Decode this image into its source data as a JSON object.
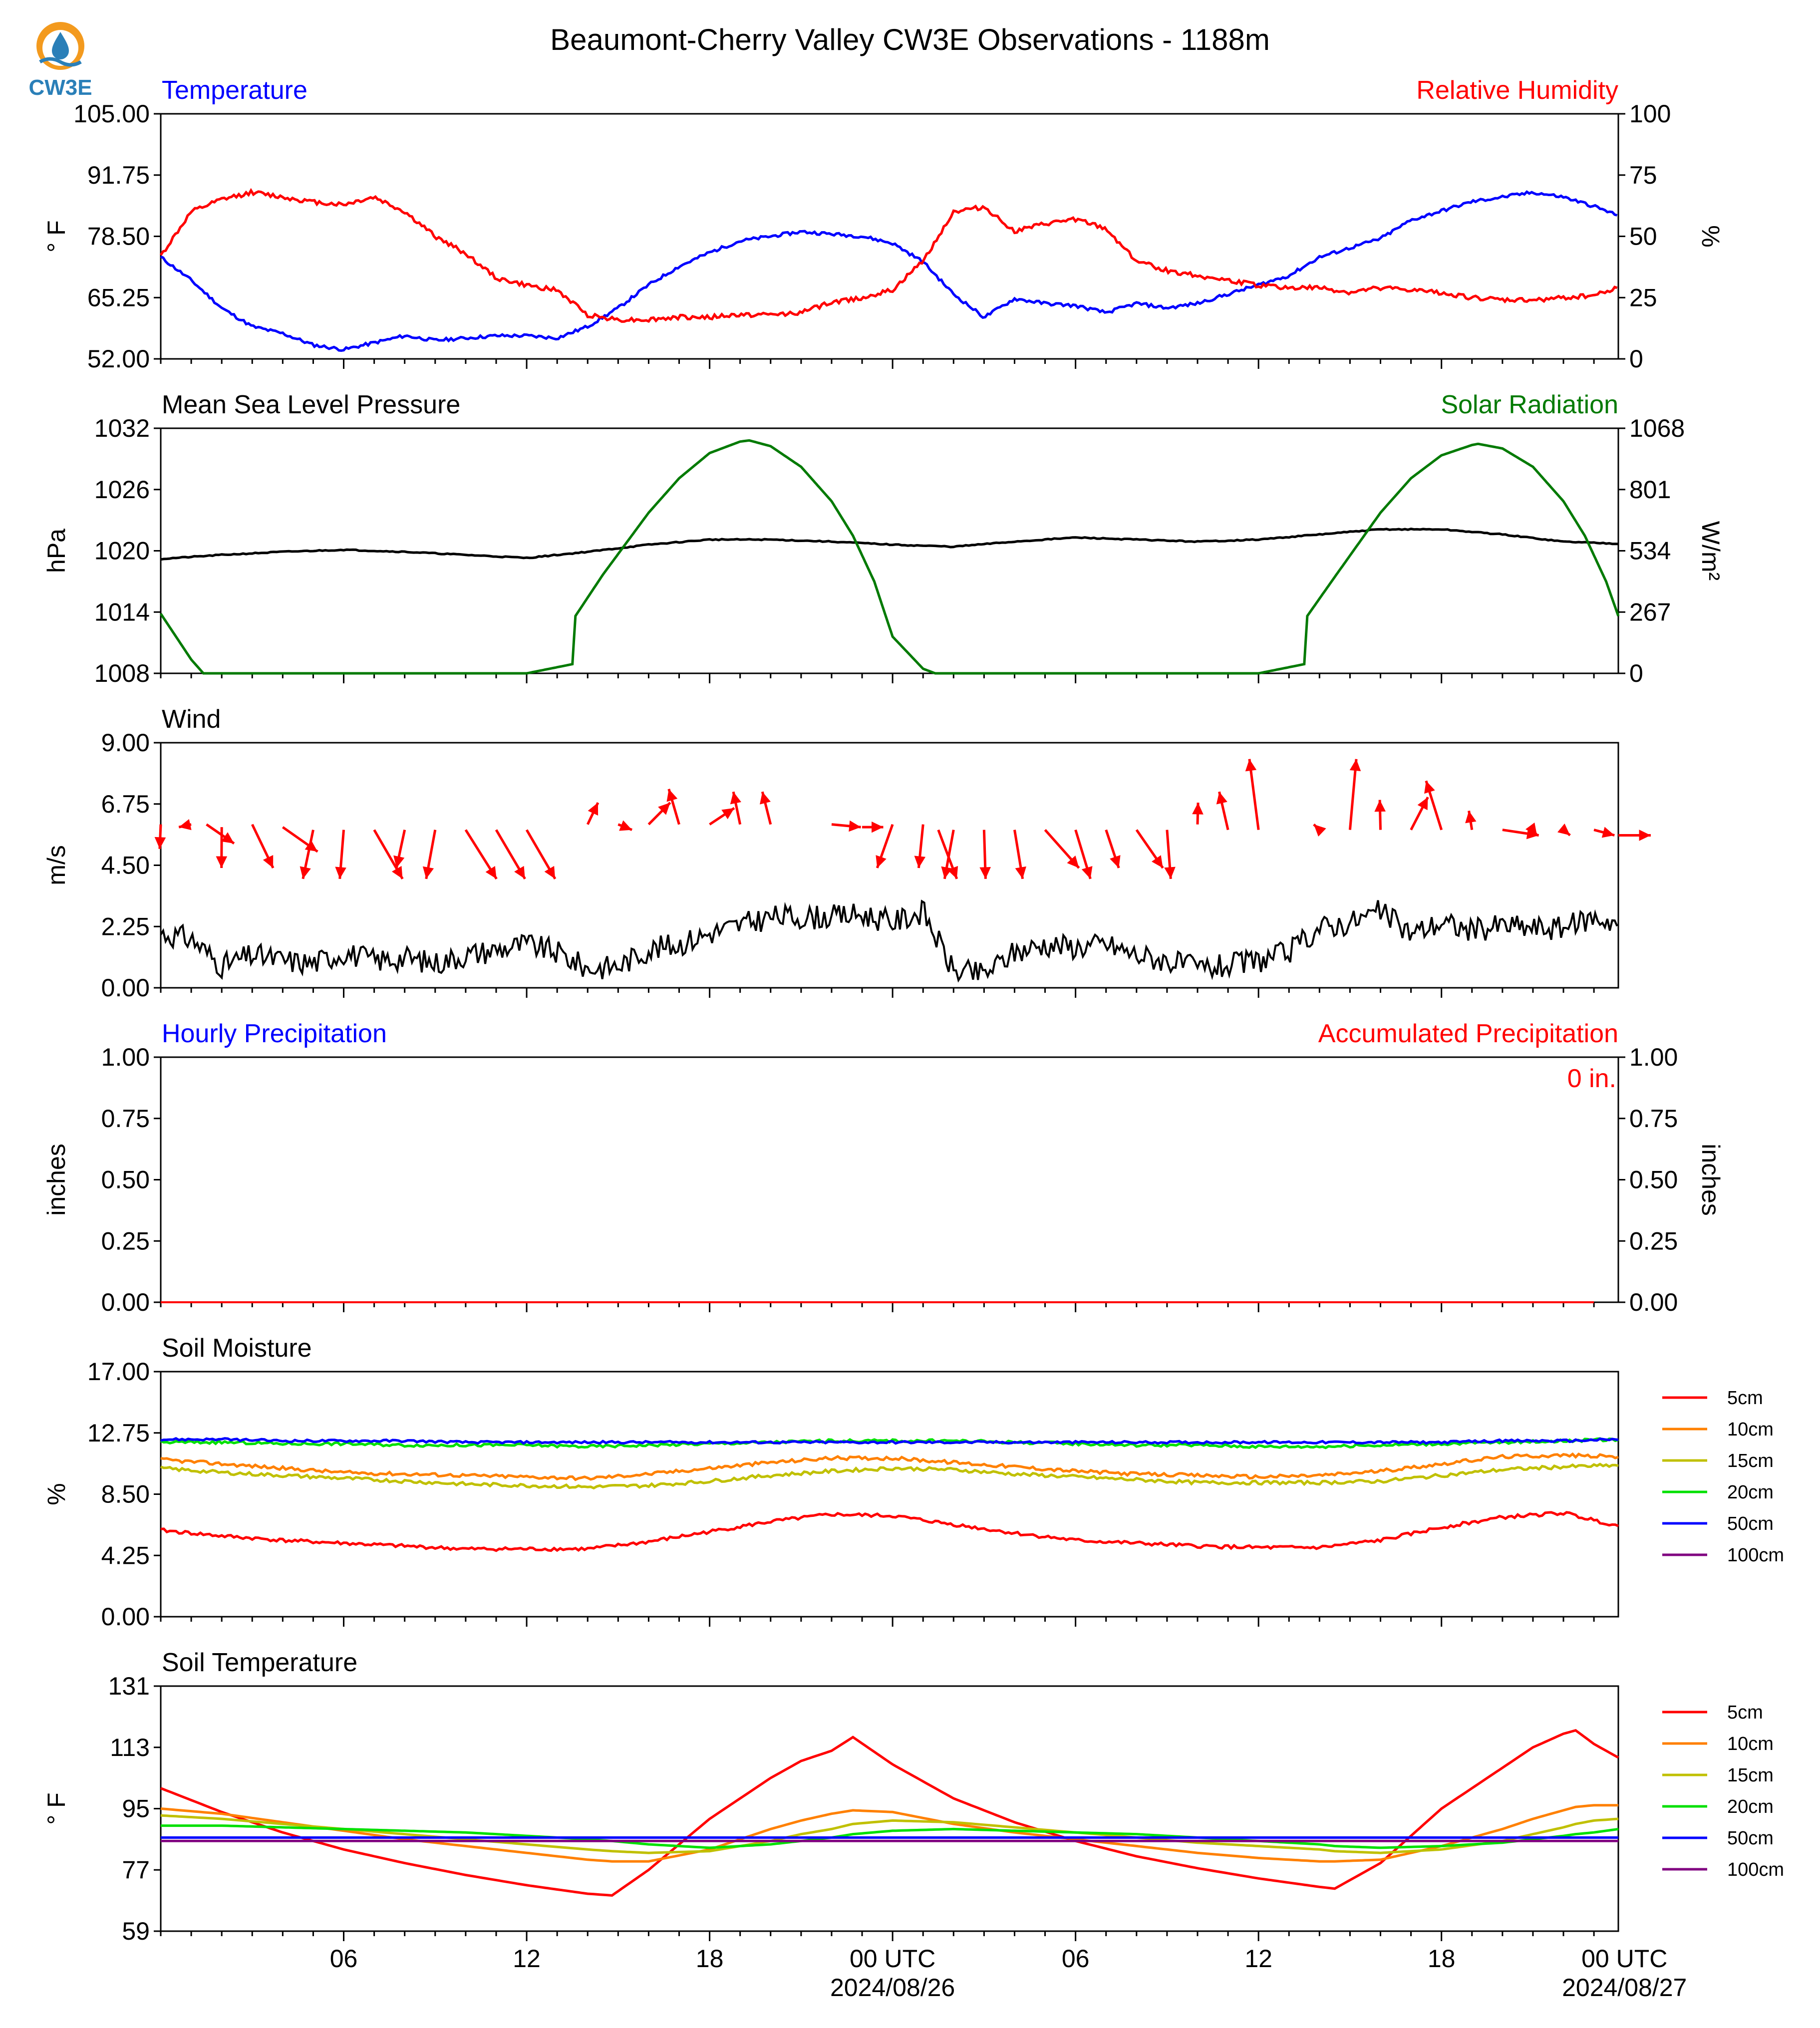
{
  "main_title": "Beaumont-Cherry Valley CW3E Observations - 1188m",
  "logo": {
    "label": "CW3E"
  },
  "x_axis": {
    "ticks": [
      "06",
      "12",
      "18",
      "00 UTC",
      "06",
      "12",
      "18",
      "00 UTC"
    ],
    "dates": [
      "2024/08/26",
      "2024/08/27"
    ]
  },
  "chart_data": [
    {
      "type": "line",
      "title_left": "Temperature",
      "title_right": "Relative Humidity",
      "ylabel_left": "° F",
      "ylabel_right": "%",
      "ylim_left": [
        52,
        105
      ],
      "ylim_right": [
        0,
        100
      ],
      "yticks_left": [
        "52.00",
        "65.25",
        "78.50",
        "91.75",
        "105.00"
      ],
      "yticks_right": [
        "0",
        "25",
        "50",
        "75",
        "100"
      ],
      "x_hours": [
        0,
        1,
        2,
        3,
        4,
        5,
        6,
        7,
        8,
        9,
        10,
        11,
        12,
        13,
        14,
        15,
        16,
        17,
        18,
        19,
        20,
        21,
        22,
        23,
        24,
        25,
        26,
        27,
        28,
        29,
        30,
        31,
        32,
        33,
        34,
        35,
        36,
        37,
        38,
        39,
        40,
        41,
        42,
        43,
        44,
        45,
        46,
        47,
        47.8
      ],
      "series": [
        {
          "name": "Temperature",
          "axis": "left",
          "color": "#0000ff",
          "values": [
            74,
            69,
            63,
            59,
            57.5,
            55,
            54,
            55.5,
            57,
            56,
            56.5,
            57,
            57,
            56.5,
            59,
            63,
            68,
            72,
            75,
            77.5,
            78.5,
            79.5,
            79,
            78.5,
            77,
            73,
            66,
            61,
            65,
            64,
            63.5,
            62,
            64,
            63,
            64,
            66,
            68,
            70,
            74,
            76,
            78,
            82,
            84,
            86,
            87,
            88,
            87,
            85,
            83
          ]
        },
        {
          "name": "Relative Humidity",
          "axis": "right",
          "color": "#ff0000",
          "values": [
            42,
            60,
            65,
            68,
            66,
            64,
            63,
            66,
            60,
            50,
            43,
            33,
            30,
            28,
            18,
            16,
            16,
            17,
            17,
            18,
            18,
            19,
            23,
            25,
            28,
            40,
            60,
            62,
            52,
            55,
            57,
            53,
            40,
            36,
            34,
            32,
            30,
            29,
            29,
            27,
            29,
            28,
            27,
            25,
            24,
            24,
            25,
            26,
            29
          ]
        }
      ]
    },
    {
      "type": "line",
      "title_left": "Mean Sea Level Pressure",
      "title_right": "Solar Radiation",
      "ylabel_left": "hPa",
      "ylabel_right": "W/m²",
      "ylim_left": [
        1008,
        1032
      ],
      "ylim_right": [
        0,
        1068
      ],
      "yticks_left": [
        "1008",
        "1014",
        "1020",
        "1026",
        "1032"
      ],
      "yticks_right": [
        "0",
        "267",
        "534",
        "801",
        "1068"
      ],
      "x_hours": [
        0,
        2,
        4,
        6,
        8,
        10,
        12,
        14,
        16,
        18,
        20,
        22,
        24,
        26,
        28,
        30,
        32,
        34,
        36,
        38,
        40,
        42,
        44,
        46,
        47.8
      ],
      "series": [
        {
          "name": "Mean Sea Level Pressure",
          "axis": "left",
          "color": "#000000",
          "values": [
            1019.2,
            1019.6,
            1019.9,
            1020.1,
            1019.9,
            1019.6,
            1019.3,
            1019.9,
            1020.6,
            1021.1,
            1021.1,
            1020.9,
            1020.6,
            1020.4,
            1020.9,
            1021.3,
            1021.1,
            1020.9,
            1021.1,
            1021.6,
            1022.1,
            1022.1,
            1021.6,
            1020.9,
            1020.7
          ]
        }
      ],
      "solar": {
        "name": "Solar Radiation",
        "axis": "right",
        "color": "#007a00",
        "x_hours": [
          0,
          1,
          1.4,
          12,
          13.5,
          13.6,
          14.5,
          16,
          17,
          18,
          19,
          19.3,
          20,
          21,
          22,
          22.7,
          23.4,
          24,
          25,
          25.4,
          36,
          37.5,
          37.6,
          38.5,
          40,
          41,
          42,
          43,
          43.2,
          44,
          45,
          46,
          46.7,
          47.4,
          47.8
        ],
        "values": [
          260,
          60,
          0,
          0,
          40,
          250,
          430,
          700,
          850,
          960,
          1010,
          1015,
          990,
          900,
          750,
          600,
          400,
          160,
          20,
          0,
          0,
          40,
          250,
          420,
          700,
          850,
          950,
          995,
          1000,
          980,
          900,
          750,
          600,
          400,
          250
        ]
      }
    },
    {
      "type": "line",
      "title_left": "Wind",
      "ylabel_left": "m/s",
      "ylim_left": [
        0,
        9
      ],
      "yticks_left": [
        "0.00",
        "2.25",
        "4.50",
        "6.75",
        "9.00"
      ],
      "x_hours": [
        0,
        1,
        2,
        3,
        4,
        5,
        6,
        7,
        8,
        9,
        10,
        11,
        12,
        13,
        14,
        15,
        16,
        17,
        18,
        19,
        20,
        21,
        22,
        23,
        24,
        25,
        26,
        27,
        28,
        29,
        30,
        31,
        32,
        33,
        34,
        35,
        36,
        37,
        38,
        39,
        40,
        41,
        42,
        43,
        44,
        45,
        46,
        47,
        47.8
      ],
      "series": [
        {
          "name": "Wind Speed",
          "axis": "left",
          "color": "#000000",
          "values": [
            2.0,
            1.8,
            0.8,
            1.2,
            1.0,
            0.9,
            1.3,
            1.0,
            1.1,
            0.9,
            1.2,
            1.4,
            1.6,
            1.3,
            0.7,
            0.8,
            1.4,
            1.6,
            2.0,
            2.3,
            2.6,
            2.6,
            2.6,
            2.7,
            2.4,
            2.8,
            0.6,
            0.5,
            1.3,
            1.6,
            1.5,
            1.6,
            1.2,
            1.0,
            0.7,
            0.8,
            1.0,
            1.3,
            2.2,
            2.4,
            2.8,
            2.0,
            2.4,
            2.1,
            2.3,
            2.2,
            2.2,
            2.6,
            2.4
          ]
        }
      ],
      "arrows": {
        "color": "#ff0000",
        "x_hours": [
          0,
          1,
          1.5,
          2,
          3,
          4,
          5,
          6,
          7,
          8,
          9,
          10,
          11,
          12,
          14,
          15,
          16,
          17,
          18,
          19,
          20,
          22,
          23,
          24,
          25,
          25.5,
          26,
          27,
          28,
          29,
          30,
          31,
          32,
          33,
          34,
          35,
          36,
          38,
          39,
          40,
          41,
          42,
          43,
          44,
          45,
          46,
          47,
          47.8
        ],
        "start": [
          6.0,
          6.0,
          6.0,
          5.9,
          6.0,
          5.9,
          5.8,
          5.8,
          5.8,
          5.8,
          5.8,
          5.8,
          5.8,
          5.8,
          6.0,
          6.0,
          6.0,
          6.0,
          6.0,
          6.0,
          6.0,
          6.0,
          5.9,
          6.0,
          6.0,
          5.8,
          5.8,
          5.8,
          5.8,
          5.8,
          5.8,
          5.8,
          5.8,
          5.8,
          6.0,
          5.8,
          5.8,
          5.8,
          5.8,
          5.8,
          5.8,
          5.8,
          5.8,
          5.8,
          5.8,
          5.8,
          5.8,
          5.6
        ],
        "end": [
          5.1,
          5.9,
          5.3,
          4.4,
          4.4,
          5.0,
          4.0,
          4.0,
          4.0,
          4.4,
          4.0,
          4.0,
          4.0,
          4.0,
          6.8,
          5.8,
          6.8,
          7.3,
          6.6,
          7.2,
          7.2,
          5.9,
          5.9,
          4.4,
          4.4,
          4.0,
          4.0,
          4.0,
          4.0,
          4.4,
          4.0,
          4.4,
          4.4,
          4.0,
          6.8,
          7.2,
          8.4,
          6.0,
          8.4,
          6.9,
          7.0,
          7.6,
          6.5,
          5.6,
          5.6,
          5.6,
          5.6,
          5.6
        ]
      }
    },
    {
      "type": "line",
      "title_left": "Hourly Precipitation",
      "title_right": "Accumulated Precipitation",
      "ylabel_left": "inches",
      "ylabel_right": "inches",
      "ylim_left": [
        0,
        1
      ],
      "ylim_right": [
        0,
        1
      ],
      "yticks_left": [
        "0.00",
        "0.25",
        "0.50",
        "0.75",
        "1.00"
      ],
      "yticks_right": [
        "0.00",
        "0.25",
        "0.50",
        "0.75",
        "1.00"
      ],
      "annotation": "0 in.",
      "x_hours": [
        0,
        47.8
      ],
      "series": [
        {
          "name": "Hourly Precipitation",
          "axis": "left",
          "color": "#0000ff",
          "values": [
            0,
            0
          ]
        },
        {
          "name": "Accumulated Precipitation",
          "axis": "right",
          "color": "#ff0000",
          "values": [
            0,
            0
          ]
        }
      ]
    },
    {
      "type": "line",
      "title_left": "Soil Moisture",
      "ylabel_left": "%",
      "ylim_left": [
        0,
        17
      ],
      "yticks_left": [
        "0.00",
        "4.25",
        "8.50",
        "12.75",
        "17.00"
      ],
      "x_hours": [
        0,
        2,
        4,
        6,
        8,
        10,
        12,
        14,
        16,
        18,
        20,
        22,
        24,
        26,
        28,
        30,
        32,
        34,
        36,
        38,
        40,
        42,
        44,
        46,
        47.8
      ],
      "series": [
        {
          "name": "5cm",
          "color": "#ff0000",
          "values": [
            6.0,
            5.6,
            5.3,
            5.1,
            4.9,
            4.7,
            4.7,
            4.7,
            5.2,
            5.9,
            6.6,
            7.1,
            7.0,
            6.4,
            5.8,
            5.3,
            5.1,
            4.9,
            4.8,
            4.8,
            5.3,
            6.2,
            6.9,
            7.2,
            6.3
          ]
        },
        {
          "name": "10cm",
          "color": "#ff8000",
          "values": [
            10.9,
            10.6,
            10.3,
            10.0,
            9.9,
            9.8,
            9.7,
            9.6,
            9.9,
            10.3,
            10.7,
            11.0,
            11.0,
            10.7,
            10.4,
            10.1,
            9.9,
            9.8,
            9.7,
            9.8,
            10.1,
            10.6,
            11.1,
            11.2,
            11.1
          ]
        },
        {
          "name": "15cm",
          "color": "#c0c000",
          "values": [
            10.3,
            10.0,
            9.8,
            9.6,
            9.4,
            9.2,
            9.1,
            9.0,
            9.1,
            9.4,
            9.8,
            10.1,
            10.3,
            10.2,
            9.9,
            9.7,
            9.5,
            9.3,
            9.3,
            9.3,
            9.4,
            9.8,
            10.2,
            10.4,
            10.5
          ]
        },
        {
          "name": "20cm",
          "color": "#00e000",
          "values": [
            12.1,
            12.1,
            12.0,
            12.0,
            11.9,
            11.9,
            11.9,
            11.8,
            11.9,
            12.0,
            12.1,
            12.2,
            12.2,
            12.2,
            12.1,
            12.0,
            11.9,
            11.9,
            11.8,
            11.8,
            11.9,
            12.0,
            12.1,
            12.2,
            12.3
          ]
        },
        {
          "name": "50cm",
          "color": "#0000ff",
          "values": [
            12.3,
            12.3,
            12.2,
            12.2,
            12.2,
            12.1,
            12.1,
            12.1,
            12.1,
            12.1,
            12.1,
            12.1,
            12.1,
            12.1,
            12.1,
            12.1,
            12.1,
            12.1,
            12.1,
            12.1,
            12.1,
            12.1,
            12.2,
            12.2,
            12.3
          ]
        },
        {
          "name": "100cm",
          "color": "#800080",
          "values": []
        }
      ]
    },
    {
      "type": "line",
      "title_left": "Soil Temperature",
      "ylabel_left": "° F",
      "ylim_left": [
        59,
        131
      ],
      "yticks_left": [
        "59",
        "77",
        "95",
        "113",
        "131"
      ],
      "x_hours": [
        0,
        2,
        4,
        6,
        8,
        10,
        12,
        14,
        14.8,
        16,
        18,
        20,
        21,
        22,
        22.7,
        24,
        26,
        28,
        30,
        32,
        34,
        36,
        38,
        38.5,
        40,
        42,
        44,
        45,
        46,
        46.4,
        47,
        47.8
      ],
      "series": [
        {
          "name": "5cm",
          "color": "#ff0000",
          "values": [
            101,
            94,
            88,
            83,
            79,
            75.5,
            72.5,
            70,
            69.5,
            77,
            92,
            104,
            109,
            112,
            116,
            108,
            98,
            91,
            85.5,
            81,
            77.5,
            74.5,
            72,
            71.5,
            79,
            95,
            107,
            113,
            117,
            118,
            114,
            110
          ]
        },
        {
          "name": "10cm",
          "color": "#ff8000",
          "values": [
            95,
            93.5,
            91,
            88.5,
            86,
            84,
            82,
            80,
            79.5,
            79.5,
            83,
            89,
            91.5,
            93.5,
            94.5,
            94,
            90.5,
            88,
            86,
            84,
            82,
            80.5,
            79.5,
            79.5,
            80,
            84,
            89,
            92,
            94.5,
            95.5,
            96,
            96
          ]
        },
        {
          "name": "15cm",
          "color": "#c0c000",
          "values": [
            93,
            92,
            90.5,
            89,
            87.5,
            86,
            84.5,
            83,
            82.5,
            82,
            82.5,
            85.5,
            87.5,
            89,
            90.5,
            91.5,
            91,
            89.5,
            88,
            86.5,
            85,
            84,
            83,
            82.5,
            82,
            83,
            85.5,
            87.5,
            89.5,
            90.5,
            91.5,
            92
          ]
        },
        {
          "name": "20cm",
          "color": "#00e000",
          "values": [
            90,
            90,
            89.5,
            89,
            88.5,
            88,
            87,
            86,
            85.5,
            84.5,
            83.5,
            84.5,
            85.5,
            86.5,
            87.5,
            88.5,
            89,
            88.5,
            88,
            87.5,
            86.5,
            85.5,
            84.5,
            84,
            83.5,
            84,
            85,
            86,
            87,
            87.5,
            88,
            89
          ]
        },
        {
          "name": "50cm",
          "color": "#0000ff",
          "values": [
            86.5,
            86.5,
            86.5,
            86.5,
            86.5,
            86.5,
            86.5,
            86.5,
            86.5,
            86.5,
            86.5,
            86.5,
            86.5,
            86.5,
            86.5,
            86.5,
            86.5,
            86.5,
            86.5,
            86.5,
            86.5,
            86.5,
            86.5,
            86.5,
            86.5,
            86.5,
            86.5,
            86.5,
            86.5,
            86.5,
            86.5,
            86.5
          ]
        },
        {
          "name": "100cm",
          "color": "#800080",
          "values": [
            85.5,
            85.5,
            85.5,
            85.5,
            85.5,
            85.5,
            85.5,
            85.5,
            85.5,
            85.5,
            85.5,
            85.5,
            85.5,
            85.5,
            85.5,
            85.5,
            85.5,
            85.5,
            85.5,
            85.5,
            85.5,
            85.5,
            85.5,
            85.5,
            85.5,
            85.5,
            85.5,
            85.5,
            85.5,
            85.5,
            85.5,
            85.5
          ]
        }
      ]
    }
  ]
}
